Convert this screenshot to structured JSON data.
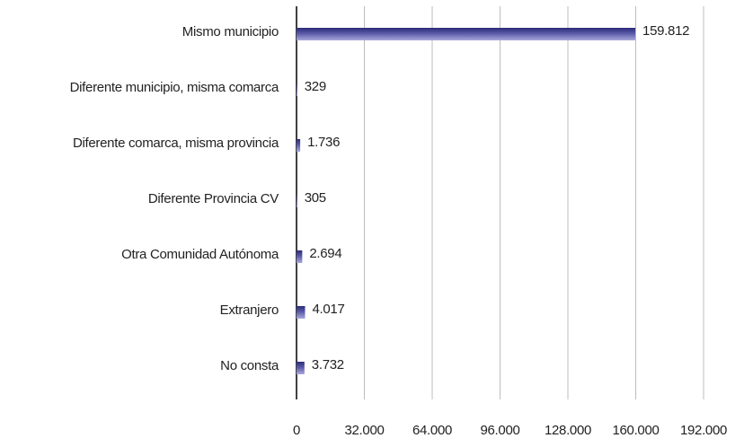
{
  "chart_data": {
    "type": "hbar",
    "categories": [
      "Mismo municipio",
      "Diferente municipio, misma comarca",
      "Diferente comarca, misma provincia",
      "Diferente Provincia CV",
      "Otra Comunidad Autónoma",
      "Extranjero",
      "No consta"
    ],
    "values": [
      159812,
      329,
      1736,
      305,
      2694,
      4017,
      3732
    ],
    "value_labels": [
      "159.812",
      "329",
      "1.736",
      "305",
      "2.694",
      "4.017",
      "3.732"
    ],
    "color": "#2b2b7a",
    "xlim": [
      0,
      192000
    ],
    "xticks": [
      0,
      {
        "value": 32000,
        "label": "32.000"
      },
      {
        "value": 64000,
        "label": "64.000"
      },
      {
        "value": 96000,
        "label": "96.000"
      },
      {
        "value": 128000,
        "label": "128.000"
      },
      {
        "value": 160000,
        "label": "160.000"
      },
      {
        "value": 192000,
        "label": "192.000"
      }
    ],
    "grid": true
  }
}
